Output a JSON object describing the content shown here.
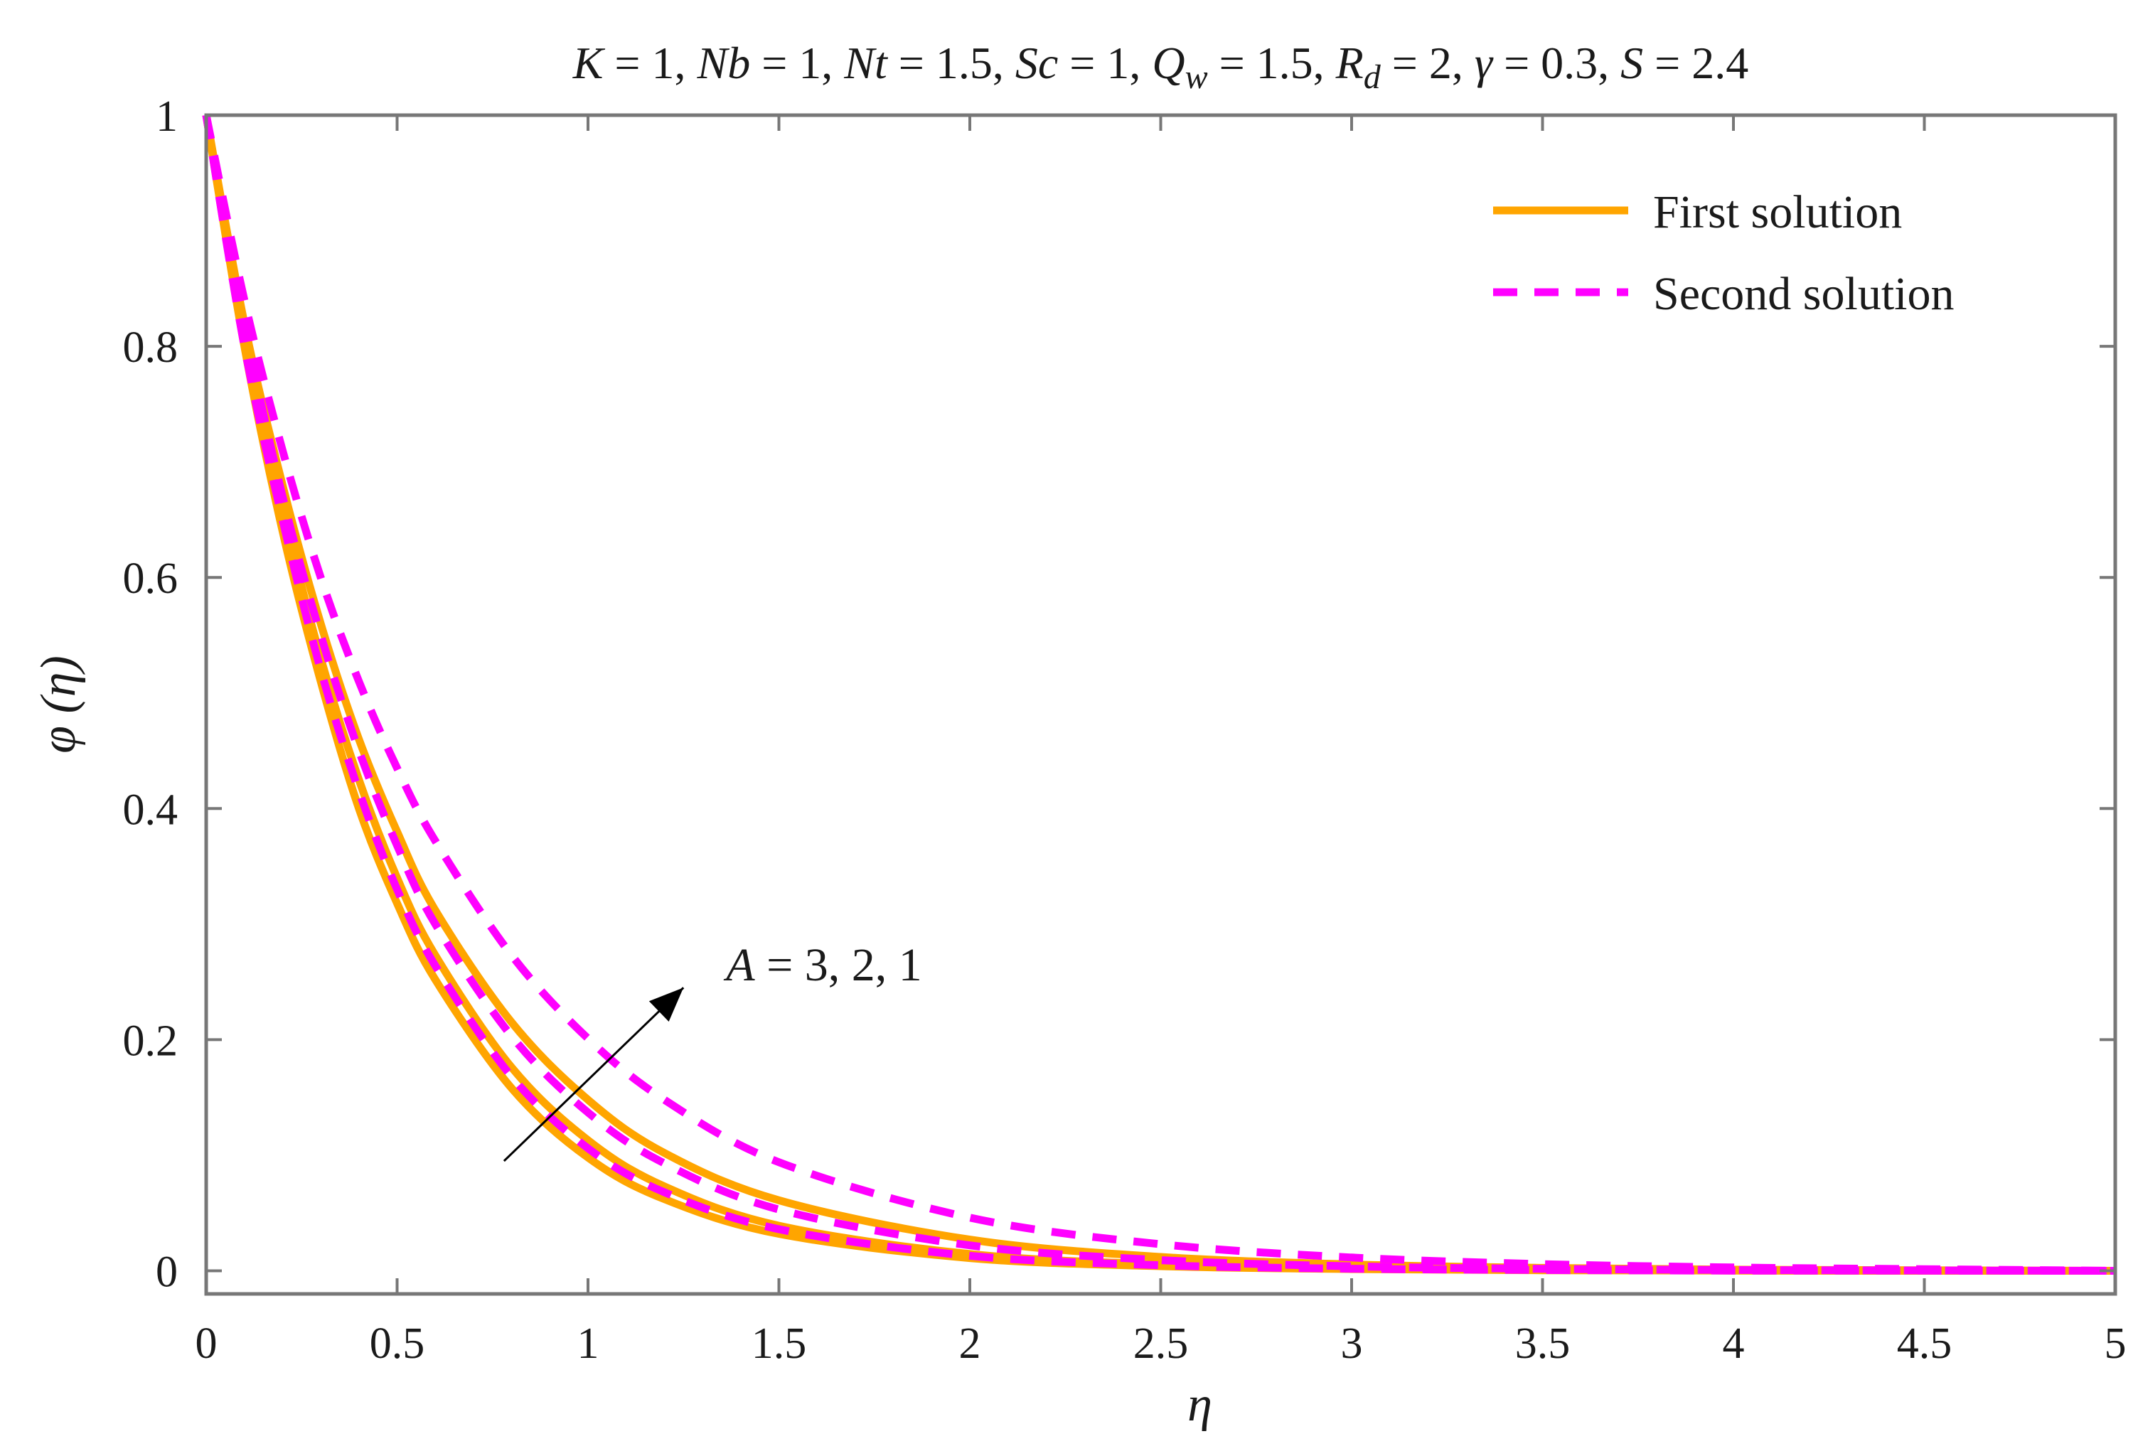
{
  "chart_data": {
    "type": "line",
    "title": {
      "parts": [
        {
          "t": "K",
          "style": "italic"
        },
        {
          "t": " = 1, "
        },
        {
          "t": "Nb",
          "style": "italic"
        },
        {
          "t": " = 1, "
        },
        {
          "t": "Nt",
          "style": "italic"
        },
        {
          "t": " = 1.5, "
        },
        {
          "t": "Sc",
          "style": "italic"
        },
        {
          "t": " = 1, "
        },
        {
          "t": "Q",
          "style": "italic"
        },
        {
          "t": "w",
          "style": "italic",
          "sub": true
        },
        {
          "t": " = 1.5, "
        },
        {
          "t": "R",
          "style": "italic"
        },
        {
          "t": "d",
          "style": "italic",
          "sub": true
        },
        {
          "t": " = 2, "
        },
        {
          "t": "γ",
          "style": "italic"
        },
        {
          "t": " = 0.3, "
        },
        {
          "t": "S",
          "style": "italic"
        },
        {
          "t": " = 2.4"
        }
      ]
    },
    "xlabel": "η",
    "ylabel": "φ (η)",
    "xlim": [
      0,
      5
    ],
    "ylim": [
      -0.02,
      1
    ],
    "xticks": [
      0,
      0.5,
      1,
      1.5,
      2,
      2.5,
      3,
      3.5,
      4,
      4.5,
      5
    ],
    "xtick_labels": [
      "0",
      "0.5",
      "1",
      "1.5",
      "2",
      "2.5",
      "3",
      "3.5",
      "4",
      "4.5",
      "5"
    ],
    "yticks": [
      0,
      0.2,
      0.4,
      0.6,
      0.8,
      1
    ],
    "ytick_labels": [
      "0",
      "0.2",
      "0.4",
      "0.6",
      "0.8",
      "1"
    ],
    "grid": false,
    "legend": {
      "placement": "top-right",
      "entries": [
        {
          "label": "First solution",
          "color": "#FFA500",
          "dash": "solid"
        },
        {
          "label": "Second solution",
          "color": "#FF00FF",
          "dash": "dashed"
        }
      ]
    },
    "annotation": {
      "parts": [
        {
          "t": "A",
          "style": "italic"
        },
        {
          "t": " = 3, 2, 1"
        }
      ],
      "arrow_from": [
        0.78,
        0.095
      ],
      "arrow_to": [
        1.25,
        0.245
      ]
    },
    "series": [
      {
        "kind": "First solution",
        "color": "#FFA500",
        "dash": "solid",
        "x": [
          0,
          0.1,
          0.2,
          0.3,
          0.4,
          0.5,
          0.6,
          0.8,
          1.0,
          1.2,
          1.5,
          2.0,
          2.5,
          3.0,
          3.5,
          4.0,
          4.5,
          5.0
        ],
        "y": [
          1,
          0.8,
          0.64,
          0.51,
          0.4,
          0.318,
          0.252,
          0.158,
          0.098,
          0.062,
          0.032,
          0.011,
          0.004,
          0.0015,
          0.0005,
          0.0002,
          0,
          0
        ]
      },
      {
        "kind": "First solution",
        "color": "#FFA500",
        "dash": "solid",
        "x": [
          0,
          0.1,
          0.2,
          0.3,
          0.4,
          0.5,
          0.6,
          0.8,
          1.0,
          1.2,
          1.5,
          2.0,
          2.5,
          3.0,
          3.5,
          4.0,
          4.5,
          5.0
        ],
        "y": [
          1,
          0.81,
          0.66,
          0.53,
          0.425,
          0.34,
          0.273,
          0.176,
          0.113,
          0.073,
          0.039,
          0.0145,
          0.0055,
          0.002,
          0.0008,
          0.0003,
          0.0001,
          0
        ]
      },
      {
        "kind": "First solution",
        "color": "#FFA500",
        "dash": "solid",
        "x": [
          0,
          0.1,
          0.2,
          0.3,
          0.4,
          0.5,
          0.6,
          0.8,
          1.0,
          1.2,
          1.5,
          2.0,
          2.5,
          3.0,
          3.5,
          4.0,
          4.5,
          5.0
        ],
        "y": [
          1,
          0.82,
          0.68,
          0.56,
          0.46,
          0.38,
          0.312,
          0.215,
          0.148,
          0.102,
          0.061,
          0.027,
          0.012,
          0.0055,
          0.0025,
          0.001,
          0.0004,
          0
        ]
      },
      {
        "kind": "Second solution",
        "color": "#FF00FF",
        "dash": "dashed",
        "x": [
          0,
          0.1,
          0.2,
          0.3,
          0.4,
          0.5,
          0.6,
          0.8,
          1.0,
          1.2,
          1.5,
          2.0,
          2.5,
          3.0,
          3.5,
          4.0,
          4.5,
          5.0
        ],
        "y": [
          1,
          0.8,
          0.65,
          0.52,
          0.415,
          0.33,
          0.264,
          0.168,
          0.106,
          0.068,
          0.036,
          0.013,
          0.0048,
          0.0018,
          0.0007,
          0.0002,
          0.0001,
          0
        ]
      },
      {
        "kind": "Second solution",
        "color": "#FF00FF",
        "dash": "dashed",
        "x": [
          0,
          0.1,
          0.2,
          0.3,
          0.4,
          0.5,
          0.6,
          0.8,
          1.0,
          1.2,
          1.5,
          2.0,
          2.5,
          3.0,
          3.5,
          4.0,
          4.5,
          5.0
        ],
        "y": [
          1,
          0.82,
          0.67,
          0.55,
          0.45,
          0.368,
          0.3,
          0.203,
          0.137,
          0.093,
          0.053,
          0.022,
          0.0092,
          0.0039,
          0.0017,
          0.0007,
          0.0003,
          0
        ]
      },
      {
        "kind": "Second solution",
        "color": "#FF00FF",
        "dash": "dashed",
        "x": [
          0,
          0.1,
          0.2,
          0.3,
          0.4,
          0.5,
          0.6,
          0.8,
          1.0,
          1.2,
          1.5,
          2.0,
          2.5,
          3.0,
          3.5,
          4.0,
          4.5,
          5.0
        ],
        "y": [
          1,
          0.84,
          0.71,
          0.6,
          0.51,
          0.435,
          0.372,
          0.273,
          0.201,
          0.148,
          0.094,
          0.046,
          0.023,
          0.0115,
          0.0058,
          0.0029,
          0.0014,
          0
        ]
      }
    ]
  }
}
